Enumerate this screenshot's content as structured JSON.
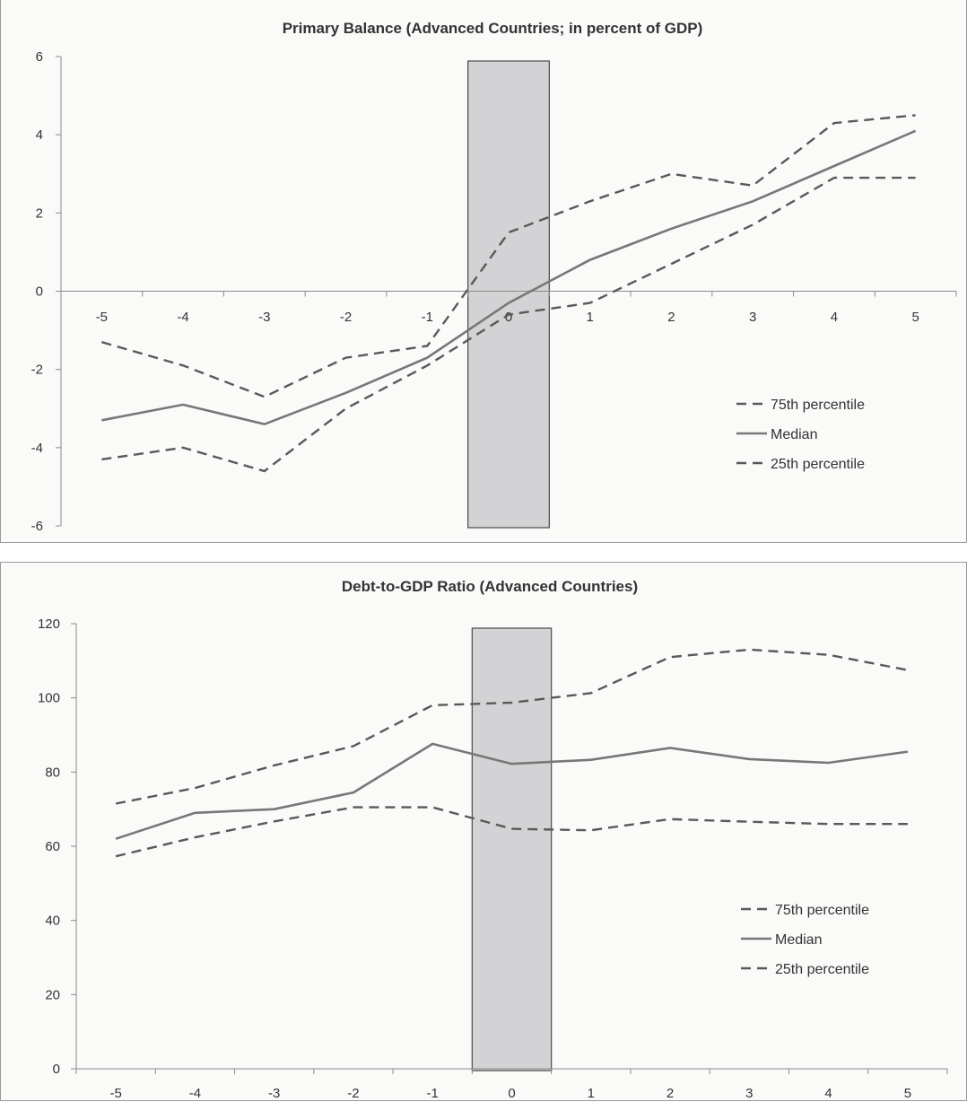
{
  "chart_data": [
    {
      "type": "line",
      "title": "Primary Balance (Advanced Countries; in percent of GDP)",
      "x": [
        -5,
        -4,
        -3,
        -2,
        -1,
        0,
        1,
        2,
        3,
        4,
        5
      ],
      "x_tick_labels": [
        "-5",
        "-4",
        "-3",
        "-2",
        "-1",
        "0",
        "1",
        "2",
        "3",
        "4",
        "5"
      ],
      "ylim": [
        -6,
        6
      ],
      "y_ticks": [
        -6,
        -4,
        -2,
        0,
        2,
        4,
        6
      ],
      "shaded_band": [
        -0.5,
        0.5
      ],
      "grid": false,
      "legend_position": "right",
      "series": [
        {
          "name": "75th percentile",
          "style": "dashed",
          "color": "#595959",
          "values": [
            -1.3,
            -1.9,
            -2.7,
            -1.7,
            -1.4,
            1.5,
            2.3,
            3.0,
            2.7,
            4.3,
            4.5
          ]
        },
        {
          "name": "Median",
          "style": "solid",
          "color": "#777777",
          "values": [
            -3.3,
            -2.9,
            -3.4,
            -2.6,
            -1.7,
            -0.3,
            0.8,
            1.6,
            2.3,
            3.2,
            4.1
          ]
        },
        {
          "name": "25th percentile",
          "style": "dashed",
          "color": "#595959",
          "values": [
            -4.3,
            -4.0,
            -4.6,
            -3.0,
            -1.9,
            -0.6,
            -0.3,
            0.7,
            1.7,
            2.9,
            2.9
          ]
        }
      ]
    },
    {
      "type": "line",
      "title": "Debt-to-GDP Ratio (Advanced Countries)",
      "x": [
        -5,
        -4,
        -3,
        -2,
        -1,
        0,
        1,
        2,
        3,
        4,
        5
      ],
      "x_tick_labels": [
        "-5",
        "-4",
        "-3",
        "-2",
        "-1",
        "0",
        "1",
        "2",
        "3",
        "4",
        "5"
      ],
      "ylim": [
        0,
        120
      ],
      "y_ticks": [
        0,
        20,
        40,
        60,
        80,
        100,
        120
      ],
      "shaded_band": [
        -0.5,
        0.5
      ],
      "grid": false,
      "legend_position": "right",
      "series": [
        {
          "name": "75th percentile",
          "style": "dashed",
          "color": "#595959",
          "values": [
            71.5,
            75.7,
            81.8,
            87.0,
            98.0,
            98.7,
            101.3,
            111.0,
            113.0,
            111.6,
            107.5
          ]
        },
        {
          "name": "Median",
          "style": "solid",
          "color": "#777777",
          "values": [
            62.0,
            69.0,
            70.0,
            74.5,
            87.6,
            82.2,
            83.3,
            86.5,
            83.5,
            82.5,
            85.5
          ]
        },
        {
          "name": "25th percentile",
          "style": "dashed",
          "color": "#595959",
          "values": [
            57.3,
            62.4,
            66.7,
            70.5,
            70.5,
            64.7,
            64.3,
            67.3,
            66.6,
            66.0,
            66.0
          ]
        }
      ]
    }
  ]
}
